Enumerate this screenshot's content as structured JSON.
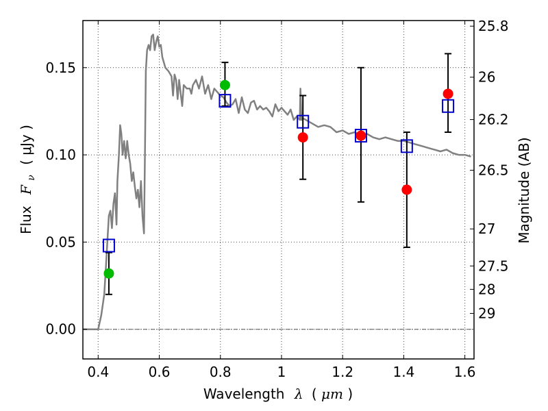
{
  "chart_data": {
    "type": "scatter",
    "xlabel_text": "Wavelength",
    "xlabel_symbol": "λ",
    "xlabel_unit_open": "(",
    "xlabel_unit": "μm",
    "xlabel_unit_close": ")",
    "ylabel_text": "Flux",
    "ylabel_symbol": "F",
    "ylabel_subscript": "ν",
    "ylabel_unit": "( μJy )",
    "y2label": "Magnitude (AB)",
    "xlim": [
      0.35,
      1.63
    ],
    "ylim": [
      -0.017,
      0.177
    ],
    "x_ticks": [
      0.4,
      0.6,
      0.8,
      1.0,
      1.2,
      1.4,
      1.6
    ],
    "x_tick_labels": [
      "0.4",
      "0.6",
      "0.8",
      "1",
      "1.2",
      "1.4",
      "1.6"
    ],
    "y_ticks": [
      0.0,
      0.05,
      0.1,
      0.15
    ],
    "y_tick_labels": [
      "0.00",
      "0.05",
      "0.10",
      "0.15"
    ],
    "y2_ticks": [
      {
        "label": "25.8",
        "mag": 25.8
      },
      {
        "label": "26",
        "mag": 26.0
      },
      {
        "label": "26.2",
        "mag": 26.2
      },
      {
        "label": "26.5",
        "mag": 26.5
      },
      {
        "label": "27",
        "mag": 27.0
      },
      {
        "label": "27.5",
        "mag": 27.5
      },
      {
        "label": "28",
        "mag": 28.0
      },
      {
        "label": "29",
        "mag": 29.0
      }
    ],
    "grid": true,
    "colors": {
      "model": "#808080",
      "model_photometry": "#0000cc",
      "detections_red": "#ff0000",
      "detections_green": "#00bb00",
      "errorbar": "#000000"
    },
    "model_spectrum": {
      "x": [
        0.35,
        0.4,
        0.41,
        0.42,
        0.425,
        0.43,
        0.435,
        0.44,
        0.445,
        0.45,
        0.455,
        0.46,
        0.463,
        0.468,
        0.472,
        0.476,
        0.48,
        0.485,
        0.49,
        0.495,
        0.5,
        0.505,
        0.51,
        0.515,
        0.52,
        0.525,
        0.53,
        0.535,
        0.54,
        0.545,
        0.55,
        0.553,
        0.556,
        0.56,
        0.565,
        0.57,
        0.575,
        0.58,
        0.585,
        0.59,
        0.595,
        0.6,
        0.605,
        0.61,
        0.62,
        0.63,
        0.64,
        0.645,
        0.65,
        0.655,
        0.66,
        0.665,
        0.67,
        0.675,
        0.68,
        0.69,
        0.7,
        0.705,
        0.71,
        0.72,
        0.73,
        0.74,
        0.75,
        0.76,
        0.77,
        0.78,
        0.79,
        0.8,
        0.81,
        0.82,
        0.83,
        0.84,
        0.85,
        0.86,
        0.87,
        0.88,
        0.89,
        0.9,
        0.91,
        0.92,
        0.93,
        0.94,
        0.95,
        0.96,
        0.97,
        0.98,
        0.99,
        1.0,
        1.01,
        1.02,
        1.03,
        1.04,
        1.05,
        1.06,
        1.062,
        1.065,
        1.07,
        1.08,
        1.1,
        1.12,
        1.14,
        1.16,
        1.18,
        1.2,
        1.22,
        1.24,
        1.26,
        1.28,
        1.3,
        1.32,
        1.34,
        1.36,
        1.38,
        1.4,
        1.42,
        1.44,
        1.46,
        1.48,
        1.5,
        1.52,
        1.54,
        1.56,
        1.58,
        1.6,
        1.62
      ],
      "y": [
        0.0,
        0.0,
        0.008,
        0.02,
        0.035,
        0.05,
        0.065,
        0.068,
        0.058,
        0.072,
        0.078,
        0.06,
        0.085,
        0.1,
        0.117,
        0.112,
        0.1,
        0.108,
        0.098,
        0.108,
        0.1,
        0.095,
        0.085,
        0.09,
        0.082,
        0.075,
        0.08,
        0.07,
        0.085,
        0.065,
        0.055,
        0.1,
        0.148,
        0.16,
        0.163,
        0.16,
        0.168,
        0.169,
        0.16,
        0.165,
        0.168,
        0.162,
        0.163,
        0.156,
        0.15,
        0.148,
        0.145,
        0.134,
        0.146,
        0.143,
        0.132,
        0.143,
        0.135,
        0.128,
        0.14,
        0.138,
        0.138,
        0.135,
        0.14,
        0.143,
        0.138,
        0.145,
        0.135,
        0.14,
        0.132,
        0.138,
        0.136,
        0.134,
        0.133,
        0.13,
        0.128,
        0.129,
        0.132,
        0.124,
        0.133,
        0.126,
        0.124,
        0.13,
        0.131,
        0.126,
        0.128,
        0.126,
        0.127,
        0.125,
        0.122,
        0.129,
        0.125,
        0.127,
        0.125,
        0.123,
        0.126,
        0.12,
        0.122,
        0.12,
        0.138,
        0.12,
        0.121,
        0.12,
        0.118,
        0.116,
        0.117,
        0.116,
        0.113,
        0.114,
        0.112,
        0.113,
        0.111,
        0.112,
        0.11,
        0.109,
        0.11,
        0.109,
        0.108,
        0.108,
        0.107,
        0.106,
        0.105,
        0.104,
        0.103,
        0.102,
        0.103,
        0.101,
        0.1,
        0.1,
        0.099
      ]
    },
    "model_photometry": [
      {
        "x": 0.435,
        "y": 0.048
      },
      {
        "x": 0.815,
        "y": 0.131
      },
      {
        "x": 1.07,
        "y": 0.119
      },
      {
        "x": 1.26,
        "y": 0.111
      },
      {
        "x": 1.41,
        "y": 0.105
      },
      {
        "x": 1.545,
        "y": 0.128
      }
    ],
    "detections": [
      {
        "x": 0.435,
        "y": 0.032,
        "err_low": 0.02,
        "err_high": 0.044,
        "color": "green"
      },
      {
        "x": 0.815,
        "y": 0.14,
        "err_low": 0.128,
        "err_high": 0.153,
        "color": "green"
      },
      {
        "x": 1.07,
        "y": 0.11,
        "err_low": 0.086,
        "err_high": 0.134,
        "color": "red"
      },
      {
        "x": 1.26,
        "y": 0.111,
        "err_low": 0.073,
        "err_high": 0.15,
        "color": "red"
      },
      {
        "x": 1.41,
        "y": 0.08,
        "err_low": 0.047,
        "err_high": 0.113,
        "color": "red"
      },
      {
        "x": 1.545,
        "y": 0.135,
        "err_low": 0.113,
        "err_high": 0.158,
        "color": "red"
      }
    ]
  }
}
